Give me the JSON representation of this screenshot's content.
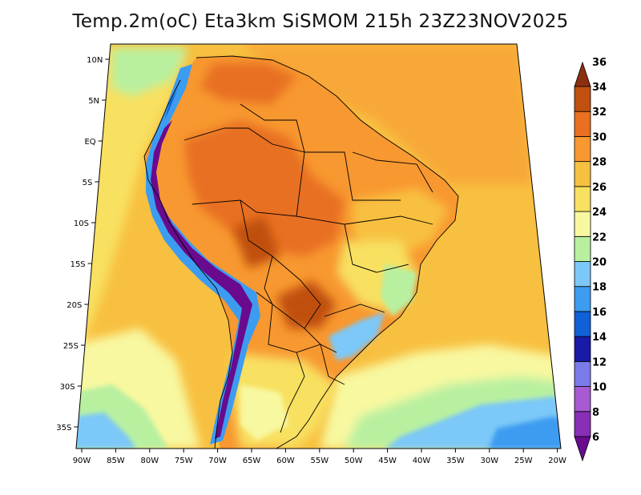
{
  "title": "Temp.2m(oC) Eta3km SiSMOM 215h 23Z23NOV2025",
  "latitude_labels": [
    "10N",
    "5N",
    "EQ",
    "5S",
    "10S",
    "15S",
    "20S",
    "25S",
    "30S",
    "35S"
  ],
  "longitude_labels": [
    "90W",
    "85W",
    "80W",
    "75W",
    "70W",
    "65W",
    "60W",
    "55W",
    "50W",
    "45W",
    "40W",
    "35W",
    "30W",
    "25W",
    "20W"
  ],
  "colorbar": {
    "labels": [
      "6",
      "8",
      "10",
      "12",
      "14",
      "16",
      "18",
      "20",
      "22",
      "24",
      "26",
      "28",
      "30",
      "32",
      "34",
      "36"
    ],
    "colors": [
      "#6a0a8f",
      "#8a2eb5",
      "#a85ad0",
      "#7a7ae8",
      "#1a1aa8",
      "#1060d8",
      "#3c9cf0",
      "#7cc8f8",
      "#b8f0a0",
      "#f8f8a0",
      "#f8e060",
      "#f8c040",
      "#f89830",
      "#e87020",
      "#c05010",
      "#8a3010"
    ]
  }
}
